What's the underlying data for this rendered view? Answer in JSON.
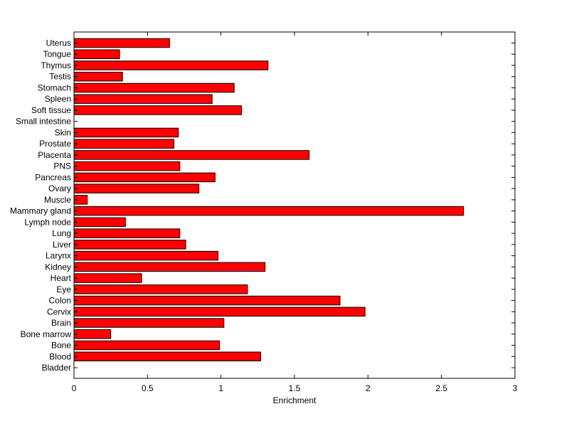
{
  "chart_data": {
    "type": "bar",
    "orientation": "horizontal",
    "categories": [
      "Bladder",
      "Blood",
      "Bone",
      "Bone marrow",
      "Brain",
      "Cervix",
      "Colon",
      "Eye",
      "Heart",
      "Kidney",
      "Larynx",
      "Liver",
      "Lung",
      "Lymph node",
      "Mammary gland",
      "Muscle",
      "Ovary",
      "Pancreas",
      "PNS",
      "Placenta",
      "Prostate",
      "Skin",
      "Small intestine",
      "Soft tissue",
      "Spleen",
      "Stomach",
      "Testis",
      "Thymus",
      "Tongue",
      "Uterus"
    ],
    "values": [
      0,
      1.27,
      0.99,
      0.25,
      1.02,
      1.98,
      1.81,
      1.18,
      0.46,
      1.3,
      0.98,
      0.76,
      0.72,
      0.35,
      2.65,
      0.09,
      0.85,
      0.96,
      0.72,
      1.6,
      0.68,
      0.71,
      0,
      1.14,
      0.94,
      1.09,
      0.33,
      1.32,
      0.31,
      0.65
    ],
    "title": "",
    "xlabel": "Enrichment",
    "ylabel": "",
    "xlim": [
      0,
      3
    ],
    "xticks": [
      0,
      0.5,
      1,
      1.5,
      2,
      2.5,
      3
    ],
    "xtick_labels": [
      "0",
      "0.5",
      "1",
      "1.5",
      "2",
      "2.5",
      "3"
    ],
    "grid": false,
    "bar_color": "#ff0000",
    "edge_color": "#000000"
  }
}
